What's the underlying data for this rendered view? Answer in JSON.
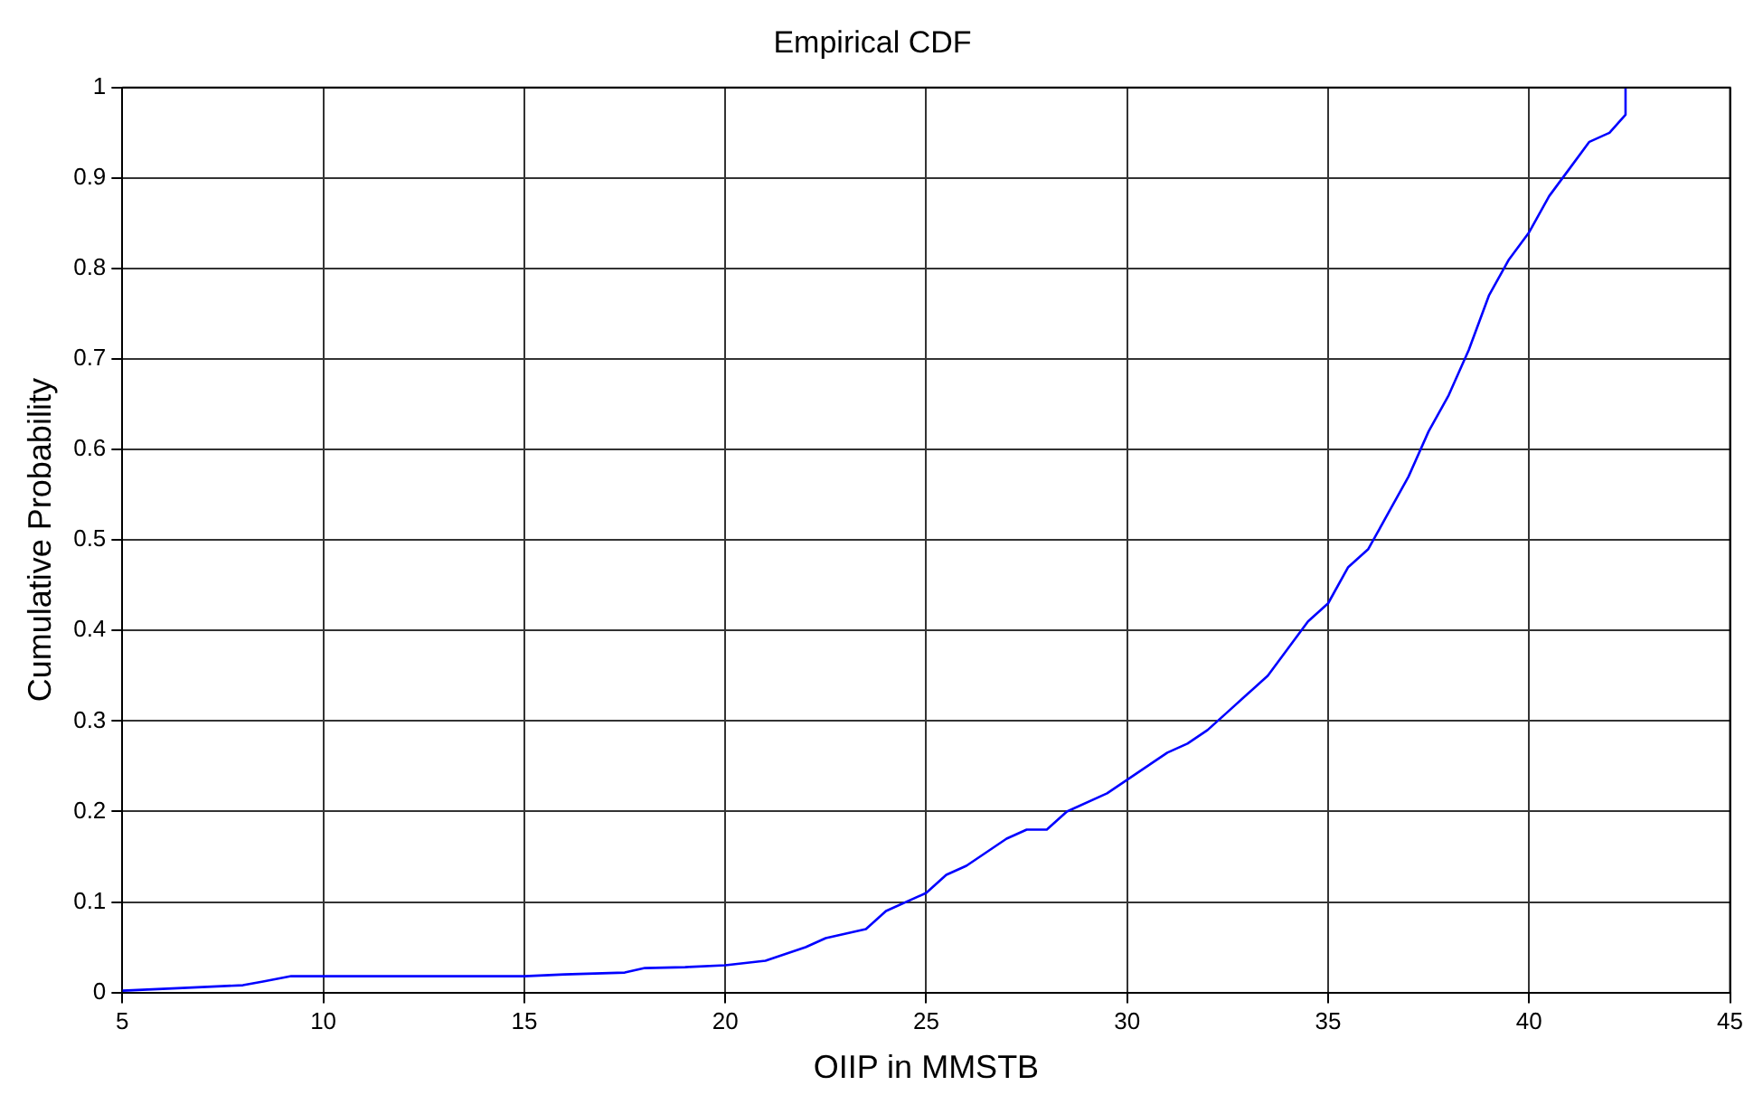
{
  "chart_data": {
    "type": "line",
    "title": "Empirical CDF",
    "xlabel": "OIIP in MMSTB",
    "ylabel": "Cumulative Probability",
    "xlim": [
      5,
      45
    ],
    "xticks": [
      5,
      10,
      15,
      20,
      25,
      30,
      35,
      40,
      45
    ],
    "ylim": [
      0,
      1
    ],
    "yticks": [
      0,
      0.1,
      0.2,
      0.3,
      0.4,
      0.5,
      0.6,
      0.7,
      0.8,
      0.9,
      1
    ],
    "grid": true,
    "marker": "none",
    "line_style": "solid",
    "series": [
      {
        "color": "#0000ff",
        "x": [
          5,
          6.5,
          8,
          8.5,
          9.2,
          10,
          15,
          16,
          17.5,
          18,
          19,
          20,
          21,
          22,
          22.5,
          23.5,
          24,
          25,
          25.5,
          26,
          26.5,
          27,
          27.5,
          28,
          28.5,
          29.5,
          30,
          30.5,
          31,
          31.5,
          32,
          32.5,
          33,
          33.5,
          34,
          34.5,
          35,
          35.5,
          36,
          36.5,
          37,
          37.5,
          38,
          38.5,
          39,
          39.5,
          40,
          40.5,
          41,
          41.5,
          42,
          42.4,
          42.4
        ],
        "values": [
          0.002,
          0.005,
          0.008,
          0.012,
          0.018,
          0.018,
          0.018,
          0.02,
          0.022,
          0.027,
          0.028,
          0.03,
          0.035,
          0.05,
          0.06,
          0.07,
          0.09,
          0.11,
          0.13,
          0.14,
          0.155,
          0.17,
          0.18,
          0.18,
          0.2,
          0.22,
          0.235,
          0.25,
          0.265,
          0.275,
          0.29,
          0.31,
          0.33,
          0.35,
          0.38,
          0.41,
          0.43,
          0.47,
          0.49,
          0.53,
          0.57,
          0.62,
          0.66,
          0.71,
          0.77,
          0.81,
          0.84,
          0.88,
          0.91,
          0.94,
          0.95,
          0.97,
          1
        ]
      }
    ]
  }
}
